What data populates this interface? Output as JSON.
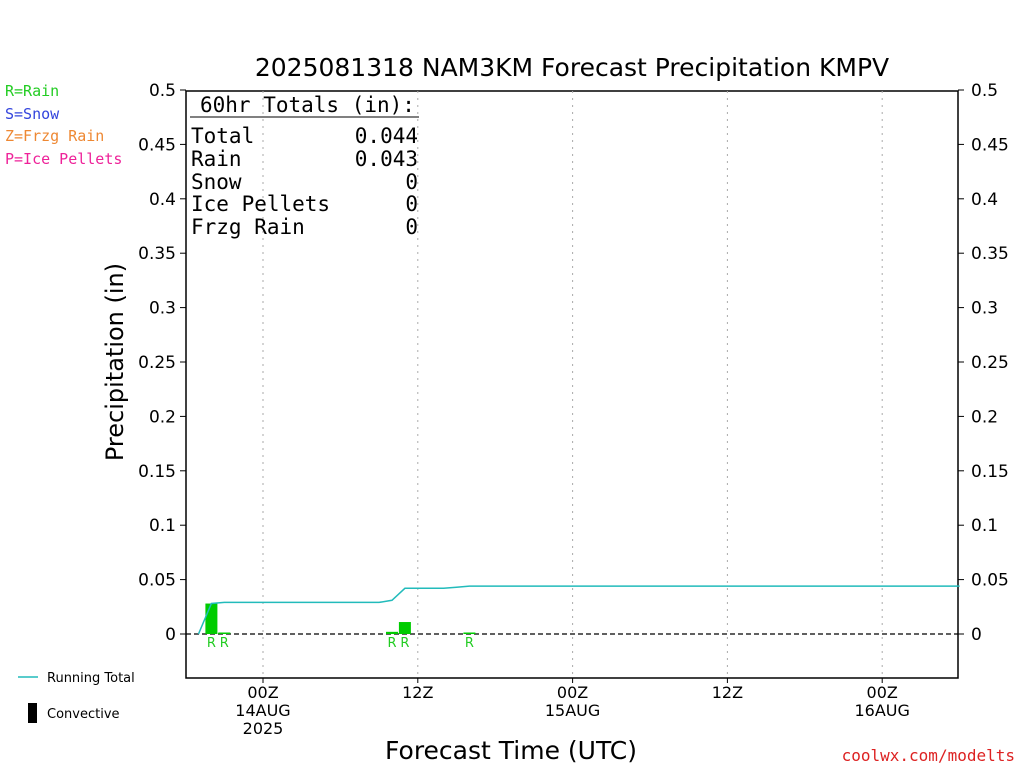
{
  "colors": {
    "rain": "#22cc22",
    "snow": "#3344dd",
    "frzg_rain": "#ee8833",
    "ice_pellets": "#ee2299",
    "running_total": "#22bbbb",
    "bar": "#00cc00",
    "credit": "#dd2222"
  },
  "legend_left": [
    {
      "label": "R=Rain",
      "color_key": "rain"
    },
    {
      "label": "S=Snow",
      "color_key": "snow"
    },
    {
      "label": "Z=Frzg Rain",
      "color_key": "frzg_rain"
    },
    {
      "label": "P=Ice Pellets",
      "color_key": "ice_pellets"
    }
  ],
  "legend_bottom": {
    "running_total": "Running Total",
    "convective": "Convective"
  },
  "totals_box": {
    "header": "60hr Totals (in):",
    "rows": [
      {
        "label": "Total",
        "value": "0.044"
      },
      {
        "label": "Rain",
        "value": "0.043"
      },
      {
        "label": "Snow",
        "value": "0"
      },
      {
        "label": "Ice Pellets",
        "value": "0"
      },
      {
        "label": "Frzg Rain",
        "value": "0"
      }
    ]
  },
  "credit": "coolwx.com/modelts",
  "chart_data": {
    "type": "bar",
    "title": "2025081318 NAM3KM Forecast Precipitation KMPV",
    "xlabel": "Forecast Time (UTC)",
    "ylabel": "Precipitation (in)",
    "ylim": [
      -0.04,
      0.5
    ],
    "yticks": [
      0,
      0.05,
      0.1,
      0.15,
      0.2,
      0.25,
      0.3,
      0.35,
      0.4,
      0.45,
      0.5
    ],
    "ytick_labels": [
      "0",
      "0.05",
      "0.1",
      "0.15",
      "0.2",
      "0.25",
      "0.3",
      "0.35",
      "0.4",
      "0.45",
      "0.5"
    ],
    "xlim_hours": [
      18,
      78
    ],
    "xticks": [
      {
        "hour": 24,
        "lines": [
          "00Z",
          "14AUG",
          "2025"
        ]
      },
      {
        "hour": 36,
        "lines": [
          "12Z"
        ]
      },
      {
        "hour": 48,
        "lines": [
          "00Z",
          "15AUG"
        ]
      },
      {
        "hour": 60,
        "lines": [
          "12Z"
        ]
      },
      {
        "hour": 72,
        "lines": [
          "00Z",
          "16AUG"
        ]
      }
    ],
    "grid": "vertical dotted",
    "bars": [
      {
        "hour": 20,
        "value": 0.028,
        "type": "R"
      },
      {
        "hour": 21,
        "value": 0.001,
        "type": "R"
      },
      {
        "hour": 34,
        "value": 0.002,
        "type": "R"
      },
      {
        "hour": 35,
        "value": 0.011,
        "type": "R"
      },
      {
        "hour": 40,
        "value": 0.001,
        "type": "R"
      }
    ],
    "running_total": {
      "name": "Running Total",
      "x": [
        19,
        20,
        21,
        22,
        23,
        24,
        26,
        28,
        30,
        32,
        33,
        34,
        35,
        36,
        37,
        38,
        39,
        40,
        41,
        42,
        48,
        54,
        60,
        66,
        72,
        78
      ],
      "y": [
        0,
        0.028,
        0.029,
        0.029,
        0.029,
        0.029,
        0.029,
        0.029,
        0.029,
        0.029,
        0.029,
        0.031,
        0.042,
        0.042,
        0.042,
        0.042,
        0.043,
        0.044,
        0.044,
        0.044,
        0.044,
        0.044,
        0.044,
        0.044,
        0.044,
        0.044
      ]
    }
  }
}
